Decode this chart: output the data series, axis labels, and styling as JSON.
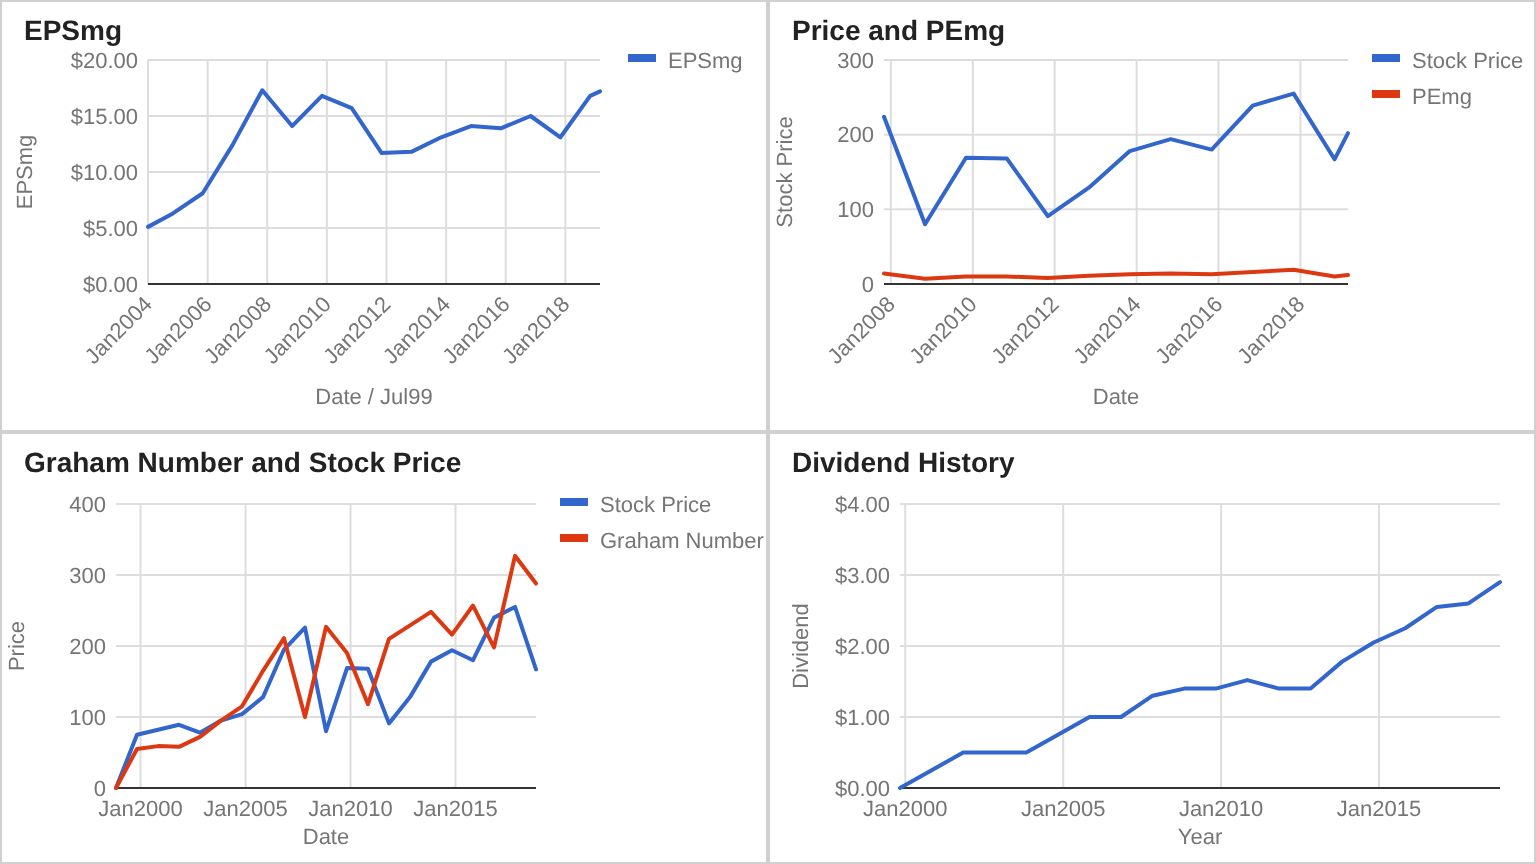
{
  "chart_data": [
    {
      "type": "line",
      "title": "EPSmg",
      "xlabel": "Date / Jul99",
      "ylabel": "EPSmg",
      "legend": "right",
      "grid": true,
      "x": [
        "2004-01",
        "2004-11",
        "2005-11",
        "2006-11",
        "2007-11",
        "2008-11",
        "2009-11",
        "2010-11",
        "2011-11",
        "2012-11",
        "2013-11",
        "2014-11",
        "2015-11",
        "2016-11",
        "2017-11",
        "2018-11",
        "2019-03"
      ],
      "xlim": [
        "2004-01",
        "2019-03"
      ],
      "xticks": [
        {
          "value": "2004-01",
          "label": "Jan2004"
        },
        {
          "value": "2006-01",
          "label": "Jan2006"
        },
        {
          "value": "2008-01",
          "label": "Jan2008"
        },
        {
          "value": "2010-01",
          "label": "Jan2010"
        },
        {
          "value": "2012-01",
          "label": "Jan2012"
        },
        {
          "value": "2014-01",
          "label": "Jan2014"
        },
        {
          "value": "2016-01",
          "label": "Jan2016"
        },
        {
          "value": "2018-01",
          "label": "Jan2018"
        }
      ],
      "ylim": [
        0,
        20
      ],
      "yticks": [
        {
          "value": 0,
          "label": "$0.00"
        },
        {
          "value": 5,
          "label": "$5.00"
        },
        {
          "value": 10,
          "label": "$10.00"
        },
        {
          "value": 15,
          "label": "$15.00"
        },
        {
          "value": 20,
          "label": "$20.00"
        }
      ],
      "series": [
        {
          "name": "EPSmg",
          "color": "#3366cc",
          "values": [
            5.1,
            6.3,
            8.1,
            12.4,
            17.3,
            14.1,
            16.8,
            15.7,
            11.7,
            11.8,
            13.1,
            14.1,
            13.9,
            15.0,
            13.1,
            16.8,
            17.2
          ]
        }
      ]
    },
    {
      "type": "line",
      "title": "Price and PEmg",
      "xlabel": "Date",
      "ylabel": "Stock Price",
      "legend": "right",
      "grid": true,
      "x": [
        "2007-11",
        "2008-11",
        "2009-11",
        "2010-11",
        "2011-11",
        "2012-11",
        "2013-11",
        "2014-11",
        "2015-11",
        "2016-11",
        "2017-11",
        "2018-11",
        "2019-03"
      ],
      "xlim": [
        "2007-11",
        "2019-03"
      ],
      "xticks": [
        {
          "value": "2008-01",
          "label": "Jan2008"
        },
        {
          "value": "2010-01",
          "label": "Jan2010"
        },
        {
          "value": "2012-01",
          "label": "Jan2012"
        },
        {
          "value": "2014-01",
          "label": "Jan2014"
        },
        {
          "value": "2016-01",
          "label": "Jan2016"
        },
        {
          "value": "2018-01",
          "label": "Jan2018"
        }
      ],
      "ylim": [
        0,
        300
      ],
      "yticks": [
        0,
        100,
        200,
        300
      ],
      "series": [
        {
          "name": "Stock Price",
          "color": "#3366cc",
          "values": [
            224,
            80,
            169,
            168,
            91,
            129,
            178,
            194,
            180,
            239,
            255,
            167,
            202
          ]
        },
        {
          "name": "PEmg",
          "color": "#dc3912",
          "values": [
            14,
            7,
            10,
            10,
            8,
            11,
            13,
            14,
            13,
            16,
            19,
            10,
            12
          ]
        }
      ]
    },
    {
      "type": "line",
      "title": "Graham Number and Stock Price",
      "xlabel": "Date",
      "ylabel": "Price",
      "legend": "right",
      "grid": true,
      "x": [
        "1998-11",
        "1999-11",
        "2000-11",
        "2001-11",
        "2002-11",
        "2003-11",
        "2004-11",
        "2005-11",
        "2006-11",
        "2007-11",
        "2008-11",
        "2009-11",
        "2010-11",
        "2011-11",
        "2012-11",
        "2013-11",
        "2014-11",
        "2015-11",
        "2016-11",
        "2017-11",
        "2018-11"
      ],
      "xlim": [
        "1998-11",
        "2018-11"
      ],
      "xticks": [
        {
          "value": "2000-01",
          "label": "Jan2000"
        },
        {
          "value": "2005-01",
          "label": "Jan2005"
        },
        {
          "value": "2010-01",
          "label": "Jan2010"
        },
        {
          "value": "2015-01",
          "label": "Jan2015"
        }
      ],
      "ylim": [
        0,
        400
      ],
      "yticks": [
        0,
        100,
        200,
        300,
        400
      ],
      "series": [
        {
          "name": "Stock Price",
          "color": "#3366cc",
          "values": [
            0,
            75,
            82,
            89,
            78,
            95,
            104,
            128,
            195,
            226,
            80,
            169,
            168,
            91,
            128,
            178,
            194,
            180,
            240,
            255,
            167
          ]
        },
        {
          "name": "Graham Number",
          "color": "#dc3912",
          "values": [
            0,
            55,
            59,
            58,
            72,
            95,
            115,
            165,
            211,
            100,
            227,
            190,
            118,
            210,
            229,
            248,
            216,
            257,
            198,
            327,
            288
          ]
        }
      ]
    },
    {
      "type": "line",
      "title": "Dividend History",
      "xlabel": "Year",
      "ylabel": "Dividend",
      "grid": true,
      "x": [
        "1999-11",
        "2000-11",
        "2001-11",
        "2002-11",
        "2003-11",
        "2004-11",
        "2005-11",
        "2006-11",
        "2007-11",
        "2008-11",
        "2009-11",
        "2010-11",
        "2011-11",
        "2012-11",
        "2013-11",
        "2014-11",
        "2015-11",
        "2016-11",
        "2017-11",
        "2018-11"
      ],
      "xlim": [
        "1999-11",
        "2018-11"
      ],
      "xticks": [
        {
          "value": "2000-01",
          "label": "Jan2000"
        },
        {
          "value": "2005-01",
          "label": "Jan2005"
        },
        {
          "value": "2010-01",
          "label": "Jan2010"
        },
        {
          "value": "2015-01",
          "label": "Jan2015"
        }
      ],
      "ylim": [
        0,
        4
      ],
      "yticks": [
        {
          "value": 0,
          "label": "$0.00"
        },
        {
          "value": 1,
          "label": "$1.00"
        },
        {
          "value": 2,
          "label": "$2.00"
        },
        {
          "value": 3,
          "label": "$3.00"
        },
        {
          "value": 4,
          "label": "$4.00"
        }
      ],
      "series": [
        {
          "color": "#3366cc",
          "values": [
            0,
            0.25,
            0.5,
            0.5,
            0.5,
            0.75,
            1.0,
            1.0,
            1.3,
            1.4,
            1.4,
            1.52,
            1.4,
            1.4,
            1.78,
            2.05,
            2.25,
            2.55,
            2.6,
            2.9
          ]
        }
      ]
    }
  ]
}
